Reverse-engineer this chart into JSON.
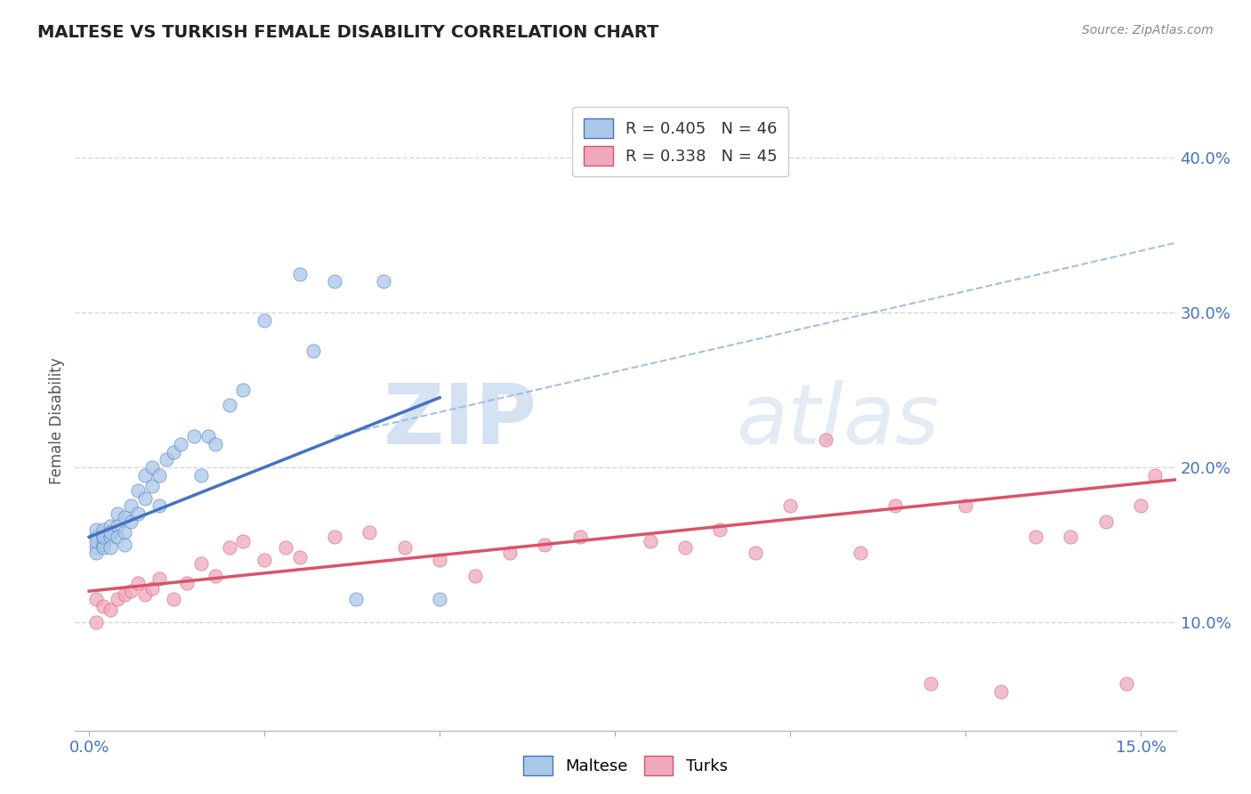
{
  "title": "MALTESE VS TURKISH FEMALE DISABILITY CORRELATION CHART",
  "source": "Source: ZipAtlas.com",
  "ylabel": "Female Disability",
  "xlim": [
    -0.002,
    0.155
  ],
  "ylim": [
    0.03,
    0.43
  ],
  "xticks": [
    0.0,
    0.025,
    0.05,
    0.075,
    0.1,
    0.125,
    0.15
  ],
  "yticks_right": [
    0.1,
    0.2,
    0.3,
    0.4
  ],
  "ytick_labels_right": [
    "10.0%",
    "20.0%",
    "30.0%",
    "40.0%"
  ],
  "maltese_color": "#aac8e8",
  "turks_color": "#f0a8bc",
  "maltese_line_color": "#4472c4",
  "turks_line_color": "#d9536a",
  "ref_line_color": "#99bbdd",
  "background_color": "#ffffff",
  "grid_color": "#cccccc",
  "title_color": "#222222",
  "axis_color": "#4472c4",
  "watermark_zip": "ZIP",
  "watermark_atlas": "atlas",
  "maltese_x": [
    0.001,
    0.001,
    0.001,
    0.001,
    0.001,
    0.002,
    0.002,
    0.002,
    0.002,
    0.002,
    0.003,
    0.003,
    0.003,
    0.003,
    0.004,
    0.004,
    0.004,
    0.005,
    0.005,
    0.005,
    0.006,
    0.006,
    0.007,
    0.007,
    0.008,
    0.008,
    0.009,
    0.009,
    0.01,
    0.01,
    0.011,
    0.012,
    0.013,
    0.015,
    0.016,
    0.017,
    0.018,
    0.02,
    0.022,
    0.025,
    0.03,
    0.032,
    0.035,
    0.038,
    0.042,
    0.05
  ],
  "maltese_y": [
    0.155,
    0.148,
    0.16,
    0.145,
    0.152,
    0.15,
    0.155,
    0.16,
    0.148,
    0.155,
    0.162,
    0.155,
    0.148,
    0.158,
    0.17,
    0.162,
    0.155,
    0.168,
    0.158,
    0.15,
    0.175,
    0.165,
    0.185,
    0.17,
    0.195,
    0.18,
    0.2,
    0.188,
    0.195,
    0.175,
    0.205,
    0.21,
    0.215,
    0.22,
    0.195,
    0.22,
    0.215,
    0.24,
    0.25,
    0.295,
    0.325,
    0.275,
    0.32,
    0.115,
    0.32,
    0.115
  ],
  "turks_x": [
    0.001,
    0.001,
    0.002,
    0.003,
    0.004,
    0.005,
    0.006,
    0.007,
    0.008,
    0.009,
    0.01,
    0.012,
    0.014,
    0.016,
    0.018,
    0.02,
    0.022,
    0.025,
    0.028,
    0.03,
    0.035,
    0.04,
    0.045,
    0.05,
    0.055,
    0.06,
    0.065,
    0.07,
    0.08,
    0.085,
    0.09,
    0.095,
    0.1,
    0.105,
    0.11,
    0.115,
    0.12,
    0.125,
    0.13,
    0.135,
    0.14,
    0.145,
    0.148,
    0.15,
    0.152
  ],
  "turks_y": [
    0.115,
    0.1,
    0.11,
    0.108,
    0.115,
    0.118,
    0.12,
    0.125,
    0.118,
    0.122,
    0.128,
    0.115,
    0.125,
    0.138,
    0.13,
    0.148,
    0.152,
    0.14,
    0.148,
    0.142,
    0.155,
    0.158,
    0.148,
    0.14,
    0.13,
    0.145,
    0.15,
    0.155,
    0.152,
    0.148,
    0.16,
    0.145,
    0.175,
    0.218,
    0.145,
    0.175,
    0.06,
    0.175,
    0.055,
    0.155,
    0.155,
    0.165,
    0.06,
    0.175,
    0.195
  ]
}
